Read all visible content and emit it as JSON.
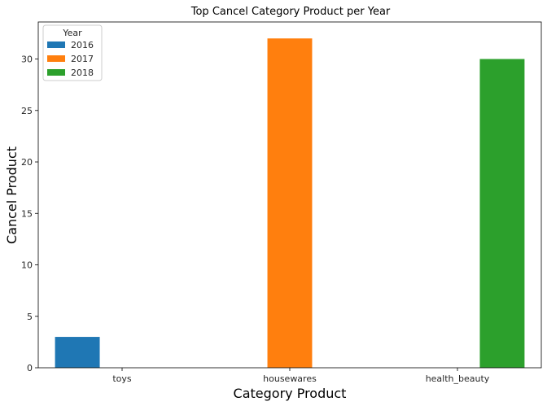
{
  "chart_data": {
    "type": "bar",
    "title": "Top Cancel Category Product per Year",
    "xlabel": "Category Product",
    "ylabel": "Cancel Product",
    "categories": [
      "toys",
      "housewares",
      "health_beauty"
    ],
    "series": [
      {
        "name": "2016",
        "color": "#1f77b4",
        "values": [
          3,
          null,
          null
        ]
      },
      {
        "name": "2017",
        "color": "#ff7f0e",
        "values": [
          null,
          32,
          null
        ]
      },
      {
        "name": "2018",
        "color": "#2ca02c",
        "values": [
          null,
          null,
          30
        ]
      }
    ],
    "ylim": [
      0,
      33.6
    ],
    "yticks": [
      0,
      5,
      10,
      15,
      20,
      25,
      30
    ],
    "grid": false,
    "legend": {
      "title": "Year",
      "placement": "top-left"
    }
  }
}
